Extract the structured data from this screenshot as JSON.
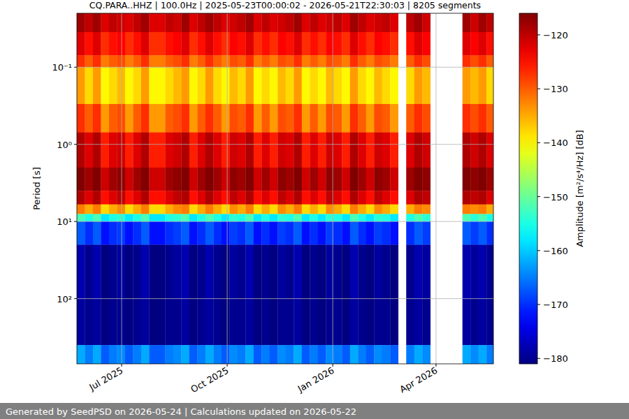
{
  "chart_data": {
    "type": "heatmap",
    "title": "CQ.PARA..HHZ | 100.0Hz | 2025-05-23T00:00:02 - 2026-05-21T22:30:03 | 8205 segments",
    "footer": "Generated by SeedPSD on 2026-05-24 | Calculations updated on 2026-05-22",
    "y_label": "Period [s]",
    "colorbar_label": "Amplitude [m²/s⁴/Hz] [dB]",
    "log": "y",
    "grid": true,
    "xlim": [
      "2025-05-23",
      "2026-05-21"
    ],
    "xticks": [
      {
        "value": "2025-07-01",
        "label": "Jul 2025"
      },
      {
        "value": "2025-10-01",
        "label": "Oct 2025"
      },
      {
        "value": "2026-01-01",
        "label": "Jan 2026"
      },
      {
        "value": "2026-04-01",
        "label": "Apr 2026"
      }
    ],
    "ylim": [
      700,
      0.02
    ],
    "yticks": [
      {
        "value": 0.1,
        "label": "10⁻¹"
      },
      {
        "value": 1,
        "label": "10⁰"
      },
      {
        "value": 10,
        "label": "10¹"
      },
      {
        "value": 100,
        "label": "10²"
      }
    ],
    "colorbar_range": [
      -181,
      -116
    ],
    "colorbar_ticks": [
      {
        "value": -120,
        "label": "−120"
      },
      {
        "value": -130,
        "label": "−130"
      },
      {
        "value": -140,
        "label": "−140"
      },
      {
        "value": -150,
        "label": "−150"
      },
      {
        "value": -160,
        "label": "−160"
      },
      {
        "value": -170,
        "label": "−170"
      },
      {
        "value": -180,
        "label": "−180"
      }
    ],
    "bins": [
      0.02,
      0.035,
      0.07,
      0.1,
      0.3,
      0.7,
      2,
      4,
      6,
      8,
      10,
      20,
      100,
      400,
      700
    ],
    "x": [
      "2025-05-23",
      "2025-05-30",
      "2025-06-06",
      "2025-06-13",
      "2025-06-20",
      "2025-06-27",
      "2025-07-04",
      "2025-07-11",
      "2025-07-18",
      "2025-07-25",
      "2025-08-01",
      "2025-08-08",
      "2025-08-15",
      "2025-08-22",
      "2025-08-29",
      "2025-09-05",
      "2025-09-12",
      "2025-09-19",
      "2025-09-26",
      "2025-10-03",
      "2025-10-10",
      "2025-10-17",
      "2025-10-24",
      "2025-10-31",
      "2025-11-07",
      "2025-11-14",
      "2025-11-21",
      "2025-11-28",
      "2025-12-05",
      "2025-12-12",
      "2025-12-19",
      "2025-12-26",
      "2026-01-02",
      "2026-01-09",
      "2026-01-16",
      "2026-01-23",
      "2026-01-30",
      "2026-02-06",
      "2026-02-13",
      "2026-02-20",
      "2026-02-27",
      "2026-03-06",
      "2026-03-13",
      "2026-03-20",
      "2026-03-27",
      "2026-04-03",
      "2026-04-10",
      "2026-04-17",
      "2026-04-24",
      "2026-05-01",
      "2026-05-08",
      "2026-05-15"
    ],
    "cells": [
      [
        -118,
        -122,
        -127,
        -134,
        -127,
        -119,
        -116,
        -119,
        -132,
        -152,
        -167,
        -178,
        -179,
        -162
      ],
      [
        -120,
        -125,
        -130,
        -138,
        -130,
        -122,
        -118,
        -122,
        -135,
        -155,
        -170,
        -180,
        -180,
        -165
      ],
      [
        -118,
        -122,
        -127,
        -134,
        -127,
        -119,
        -116,
        -119,
        -132,
        -152,
        -167,
        -178,
        -179,
        -162
      ],
      [
        -122,
        -127,
        -132,
        -140,
        -134,
        -126,
        -121,
        -125,
        -138,
        -158,
        -172,
        -181,
        -181,
        -167
      ],
      [
        -120,
        -125,
        -130,
        -138,
        -130,
        -122,
        -118,
        -122,
        -135,
        -155,
        -170,
        -180,
        -180,
        -165
      ],
      [
        -121,
        -124,
        -129,
        -136,
        -129,
        -121,
        -117,
        -120,
        -133,
        -154,
        -169,
        -179,
        -180,
        -164
      ],
      [
        -122,
        -127,
        -132,
        -140,
        -134,
        -126,
        -121,
        -125,
        -138,
        -158,
        -172,
        -181,
        -181,
        -167
      ],
      [
        -120,
        -125,
        -130,
        -138,
        -130,
        -122,
        -118,
        -122,
        -135,
        -155,
        -170,
        -180,
        -180,
        -165
      ],
      [
        -118,
        -122,
        -127,
        -134,
        -127,
        -119,
        -116,
        -119,
        -132,
        -152,
        -167,
        -178,
        -179,
        -162
      ],
      [
        -122,
        -127,
        -132,
        -140,
        -134,
        -126,
        -121,
        -125,
        -138,
        -158,
        -172,
        -181,
        -181,
        -167
      ],
      [
        -122,
        -127,
        -132,
        -140,
        -134,
        -126,
        -121,
        -125,
        -138,
        -158,
        -172,
        -181,
        -181,
        -167
      ],
      [
        -120,
        -125,
        -130,
        -138,
        -130,
        -122,
        -118,
        -122,
        -135,
        -155,
        -170,
        -180,
        -180,
        -165
      ],
      [
        -121,
        -124,
        -129,
        -136,
        -129,
        -121,
        -117,
        -120,
        -133,
        -154,
        -169,
        -179,
        -180,
        -164
      ],
      [
        -118,
        -122,
        -127,
        -134,
        -127,
        -119,
        -116,
        -119,
        -132,
        -152,
        -167,
        -178,
        -179,
        -162
      ],
      [
        -122,
        -127,
        -132,
        -140,
        -134,
        -126,
        -121,
        -125,
        -138,
        -158,
        -172,
        -181,
        -181,
        -167
      ],
      [
        -120,
        -125,
        -130,
        -138,
        -130,
        -122,
        -118,
        -122,
        -135,
        -155,
        -170,
        -180,
        -180,
        -165
      ],
      [
        -118,
        -122,
        -127,
        -134,
        -127,
        -119,
        -116,
        -119,
        -132,
        -152,
        -167,
        -178,
        -179,
        -162
      ],
      [
        -120,
        -125,
        -130,
        -138,
        -130,
        -122,
        -118,
        -122,
        -135,
        -155,
        -170,
        -180,
        -180,
        -165
      ],
      [
        -122,
        -127,
        -132,
        -140,
        -134,
        -126,
        -121,
        -125,
        -138,
        -158,
        -172,
        -181,
        -181,
        -167
      ],
      [
        -121,
        -124,
        -129,
        -136,
        -129,
        -121,
        -117,
        -120,
        -133,
        -154,
        -169,
        -179,
        -180,
        -164
      ],
      [
        -120,
        -125,
        -130,
        -138,
        -130,
        -122,
        -118,
        -122,
        -135,
        -155,
        -170,
        -180,
        -180,
        -165
      ],
      [
        -118,
        -122,
        -127,
        -134,
        -127,
        -119,
        -116,
        -119,
        -132,
        -152,
        -167,
        -178,
        -179,
        -162
      ],
      [
        -122,
        -127,
        -132,
        -140,
        -134,
        -126,
        -121,
        -125,
        -138,
        -158,
        -172,
        -181,
        -181,
        -167
      ],
      [
        -120,
        -125,
        -130,
        -138,
        -130,
        -122,
        -118,
        -122,
        -135,
        -155,
        -170,
        -180,
        -180,
        -165
      ],
      [
        -122,
        -127,
        -132,
        -140,
        -134,
        -126,
        -121,
        -125,
        -138,
        -158,
        -172,
        -181,
        -181,
        -167
      ],
      [
        -121,
        -124,
        -129,
        -136,
        -129,
        -121,
        -117,
        -120,
        -133,
        -154,
        -169,
        -179,
        -180,
        -164
      ],
      [
        -120,
        -125,
        -130,
        -138,
        -130,
        -122,
        -118,
        -122,
        -135,
        -155,
        -170,
        -180,
        -180,
        -165
      ],
      [
        -118,
        -122,
        -127,
        -134,
        -127,
        -119,
        -116,
        -119,
        -132,
        -152,
        -167,
        -178,
        -179,
        -162
      ],
      [
        -122,
        -127,
        -132,
        -140,
        -134,
        -126,
        -121,
        -125,
        -138,
        -158,
        -172,
        -181,
        -181,
        -167
      ],
      [
        -120,
        -125,
        -130,
        -138,
        -130,
        -122,
        -118,
        -122,
        -135,
        -155,
        -170,
        -180,
        -180,
        -165
      ],
      [
        -122,
        -127,
        -132,
        -140,
        -134,
        -126,
        -121,
        -125,
        -138,
        -158,
        -172,
        -181,
        -181,
        -167
      ],
      [
        -121,
        -124,
        -129,
        -136,
        -129,
        -121,
        -117,
        -120,
        -133,
        -154,
        -169,
        -179,
        -180,
        -164
      ],
      [
        -120,
        -125,
        -130,
        -138,
        -130,
        -122,
        -118,
        -122,
        -135,
        -155,
        -170,
        -180,
        -180,
        -165
      ],
      [
        -122,
        -127,
        -132,
        -140,
        -134,
        -126,
        -121,
        -125,
        -138,
        -158,
        -172,
        -181,
        -181,
        -167
      ],
      [
        -118,
        -122,
        -127,
        -134,
        -127,
        -119,
        -116,
        -119,
        -132,
        -152,
        -167,
        -178,
        -179,
        -162
      ],
      [
        -120,
        -125,
        -130,
        -138,
        -130,
        -122,
        -118,
        -122,
        -135,
        -155,
        -170,
        -180,
        -180,
        -165
      ],
      [
        -122,
        -127,
        -132,
        -140,
        -134,
        -126,
        -121,
        -125,
        -138,
        -158,
        -172,
        -181,
        -181,
        -167
      ],
      [
        -121,
        -124,
        -129,
        -136,
        -129,
        -121,
        -117,
        -120,
        -133,
        -154,
        -169,
        -179,
        -180,
        -164
      ],
      [
        -120,
        -125,
        -130,
        -138,
        -130,
        -122,
        -118,
        -122,
        -135,
        -155,
        -170,
        -180,
        -180,
        -165
      ],
      [
        -122,
        -127,
        -132,
        -140,
        -134,
        -126,
        -121,
        -125,
        -138,
        -158,
        -172,
        -181,
        -181,
        -167
      ],
      null,
      [
        -120,
        -125,
        -130,
        -138,
        -130,
        -122,
        -118,
        -122,
        -135,
        -155,
        -170,
        -180,
        -180,
        -165
      ],
      [
        -118,
        -122,
        -127,
        -134,
        -127,
        -119,
        -116,
        -119,
        -132,
        -152,
        -167,
        -178,
        -179,
        -162
      ],
      [
        -121,
        -124,
        -129,
        -136,
        -129,
        -121,
        -117,
        -120,
        -133,
        -154,
        -169,
        -179,
        -180,
        -164
      ],
      null,
      null,
      null,
      null,
      [
        -118,
        -122,
        -127,
        -134,
        -127,
        -119,
        -116,
        -119,
        -132,
        -152,
        -167,
        -178,
        -179,
        -162
      ],
      [
        -121,
        -124,
        -129,
        -136,
        -129,
        -121,
        -117,
        -120,
        -133,
        -154,
        -169,
        -179,
        -180,
        -164
      ],
      [
        -118,
        -122,
        -127,
        -134,
        -127,
        -119,
        -116,
        -119,
        -132,
        -152,
        -167,
        -178,
        -179,
        -162
      ],
      [
        -120,
        -125,
        -130,
        -138,
        -130,
        -122,
        -118,
        -122,
        -135,
        -155,
        -170,
        -180,
        -180,
        -165
      ]
    ]
  }
}
